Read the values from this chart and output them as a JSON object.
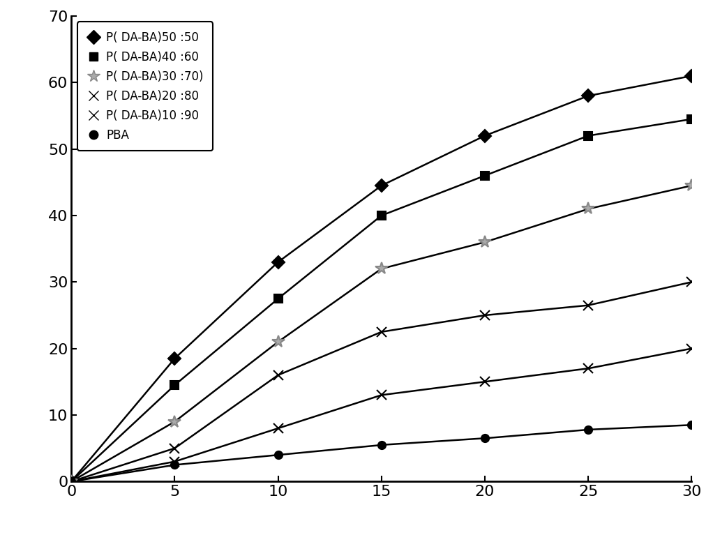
{
  "series": [
    {
      "label": "P( DA-BA)50 :50",
      "marker": "D",
      "markercolor": "#000000",
      "markersize": 9,
      "x": [
        0,
        5,
        10,
        15,
        20,
        25,
        30
      ],
      "y": [
        0,
        18.5,
        33,
        44.5,
        52,
        58,
        61
      ]
    },
    {
      "label": "P( DA-BA)40 :60",
      "marker": "s",
      "markercolor": "#000000",
      "markersize": 9,
      "x": [
        0,
        5,
        10,
        15,
        20,
        25,
        30
      ],
      "y": [
        0,
        14.5,
        27.5,
        40,
        46,
        52,
        54.5
      ]
    },
    {
      "label": "P( DA-BA)30 :70)",
      "marker": "*",
      "markercolor": "#888888",
      "markersize": 13,
      "x": [
        0,
        5,
        10,
        15,
        20,
        25,
        30
      ],
      "y": [
        0,
        9,
        21,
        32,
        36,
        41,
        44.5
      ]
    },
    {
      "label": "% P( DA-BA)20 :80",
      "marker": "x",
      "markercolor": "#000000",
      "markersize": 10,
      "x": [
        0,
        5,
        10,
        15,
        20,
        25,
        30
      ],
      "y": [
        0,
        5,
        16,
        22.5,
        25,
        26.5,
        30
      ]
    },
    {
      "label": "x P( DA-BA)10 :90",
      "marker": "$\\times$",
      "markercolor": "#000000",
      "markersize": 11,
      "x": [
        0,
        5,
        10,
        15,
        20,
        25,
        30
      ],
      "y": [
        0,
        3,
        8,
        13,
        15,
        17,
        20
      ]
    },
    {
      "label": "PBA",
      "marker": "o",
      "markercolor": "#000000",
      "markersize": 8,
      "x": [
        0,
        5,
        10,
        15,
        20,
        25,
        30
      ],
      "y": [
        0,
        2.5,
        4,
        5.5,
        6.5,
        7.8,
        8.5
      ]
    }
  ],
  "xlim": [
    0,
    30
  ],
  "ylim": [
    0,
    70
  ],
  "xticks": [
    0,
    5,
    10,
    15,
    20,
    25,
    30
  ],
  "yticks": [
    0,
    10,
    20,
    30,
    40,
    50,
    60,
    70
  ],
  "background_color": "#ffffff",
  "legend_fontsize": 12,
  "tick_fontsize": 16,
  "figsize": [
    10.22,
    7.67
  ],
  "dpi": 100
}
